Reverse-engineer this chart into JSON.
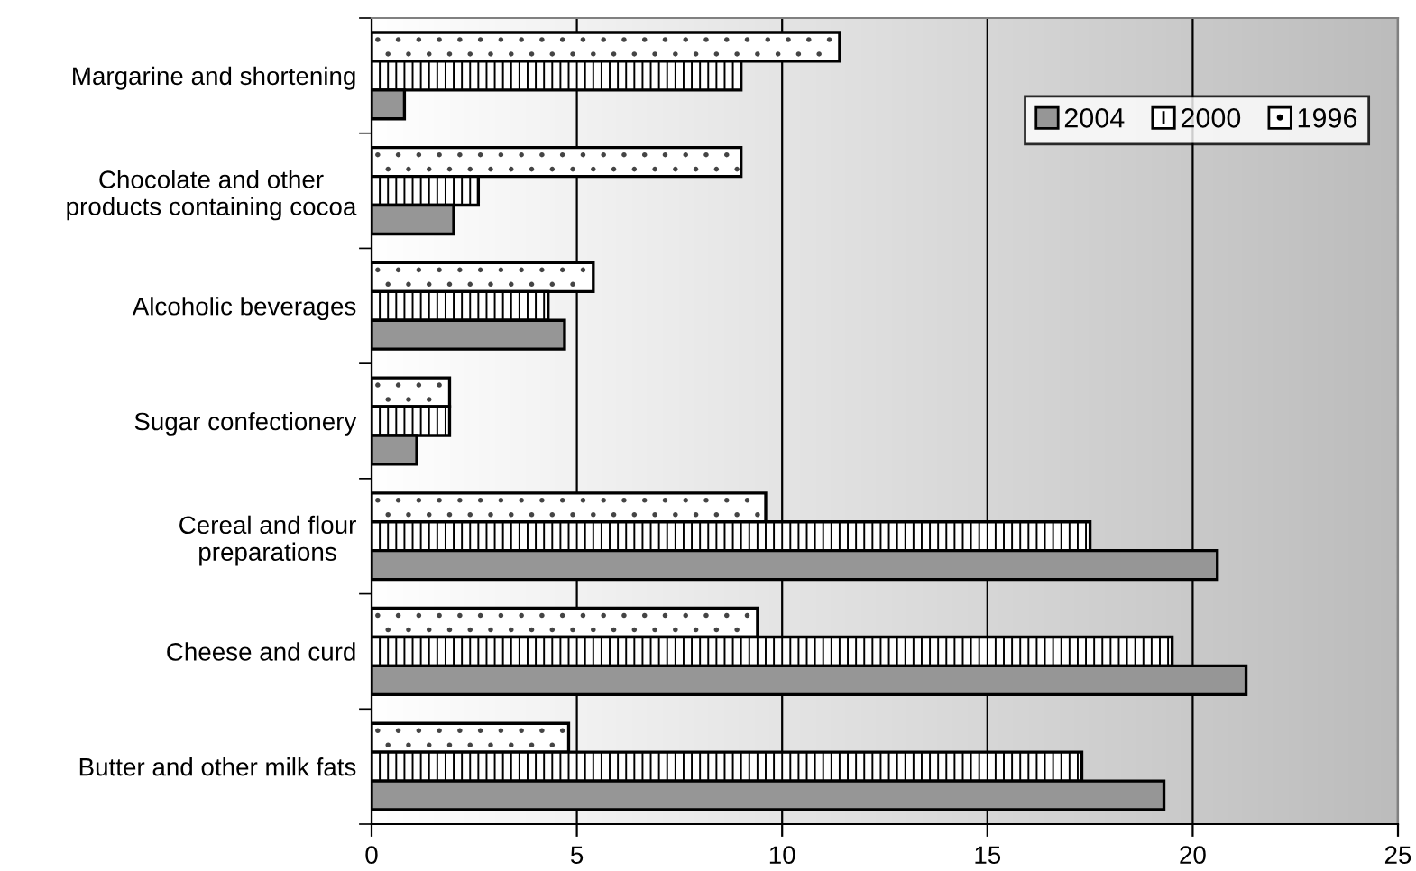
{
  "chart_data": {
    "type": "bar",
    "orientation": "horizontal",
    "categories": [
      "Margarine and shortening",
      "Chocolate and other\nproducts containing cocoa",
      "Alcoholic beverages",
      "Sugar confectionery",
      "Cereal and flour\npreparations",
      "Cheese and curd",
      "Butter and other milk fats"
    ],
    "series": [
      {
        "name": "1996",
        "color": "#ffffff",
        "values": [
          11.4,
          9.0,
          5.4,
          1.9,
          9.6,
          9.4,
          4.8
        ]
      },
      {
        "name": "2000",
        "color": "#ffffff",
        "values": [
          9.0,
          2.6,
          4.3,
          1.9,
          17.5,
          19.5,
          17.3
        ]
      },
      {
        "name": "2004",
        "color": "#969696",
        "values": [
          0.8,
          2.0,
          4.7,
          1.1,
          20.6,
          21.3,
          19.3
        ]
      }
    ],
    "xlim": [
      0,
      25
    ],
    "xticks": [
      0,
      5,
      10,
      15,
      20,
      25
    ],
    "grid": "x",
    "legend": "top right"
  }
}
